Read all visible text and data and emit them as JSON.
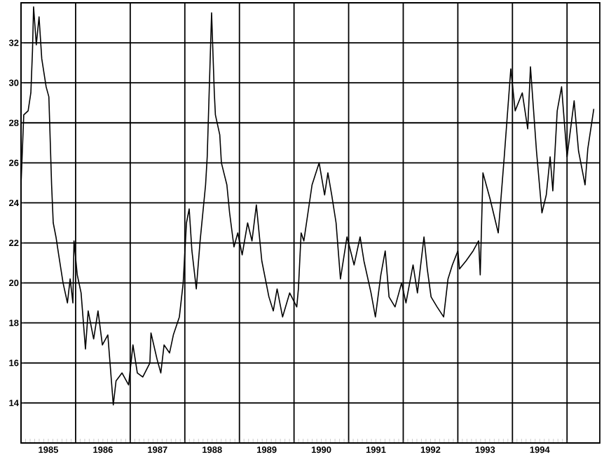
{
  "chart_data": {
    "type": "line",
    "x": [
      1985.0,
      1985.05,
      1985.13,
      1985.18,
      1985.21,
      1985.23,
      1985.28,
      1985.33,
      1985.38,
      1985.46,
      1985.51,
      1985.56,
      1985.59,
      1985.64,
      1985.69,
      1985.77,
      1985.85,
      1985.9,
      1985.95,
      1985.97,
      1986.03,
      1986.1,
      1986.18,
      1986.23,
      1986.33,
      1986.41,
      1986.49,
      1986.59,
      1986.69,
      1986.74,
      1986.85,
      1986.97,
      1987.05,
      1987.13,
      1987.23,
      1987.36,
      1987.38,
      1987.49,
      1987.56,
      1987.62,
      1987.72,
      1987.79,
      1987.9,
      1987.97,
      1988.03,
      1988.08,
      1988.13,
      1988.21,
      1988.28,
      1988.38,
      1988.41,
      1988.49,
      1988.54,
      1988.56,
      1988.64,
      1988.67,
      1988.77,
      1988.82,
      1988.9,
      1988.97,
      1989.05,
      1989.15,
      1989.23,
      1989.31,
      1989.41,
      1989.54,
      1989.62,
      1989.69,
      1989.79,
      1989.92,
      1990.05,
      1990.08,
      1990.13,
      1990.18,
      1990.33,
      1990.46,
      1990.56,
      1990.62,
      1990.69,
      1990.77,
      1990.85,
      1990.97,
      1991.1,
      1991.21,
      1991.28,
      1991.41,
      1991.49,
      1991.59,
      1991.67,
      1991.74,
      1991.85,
      1991.97,
      1992.05,
      1992.18,
      1992.26,
      1992.38,
      1992.44,
      1992.51,
      1992.62,
      1992.74,
      1992.82,
      1992.9,
      1993.0,
      1993.03,
      1993.15,
      1993.28,
      1993.38,
      1993.41,
      1993.46,
      1993.59,
      1993.74,
      1993.85,
      1993.97,
      1994.05,
      1994.18,
      1994.28,
      1994.33,
      1994.44,
      1994.54,
      1994.62,
      1994.69,
      1994.74,
      1994.82,
      1994.9,
      1995.0,
      1995.13,
      1995.21,
      1995.33,
      1995.38,
      1995.49
    ],
    "values": [
      24.9,
      28.4,
      28.6,
      29.5,
      31.6,
      33.8,
      31.9,
      33.3,
      31.2,
      29.8,
      29.3,
      24.9,
      23.0,
      22.3,
      21.4,
      20.0,
      19.0,
      20.2,
      19.0,
      22.1,
      20.4,
      19.5,
      16.7,
      18.6,
      17.2,
      18.6,
      16.9,
      17.4,
      13.9,
      15.1,
      15.5,
      14.9,
      16.9,
      15.5,
      15.3,
      16.0,
      17.5,
      16.2,
      15.5,
      16.9,
      16.5,
      17.4,
      18.3,
      20.0,
      23.0,
      23.7,
      21.6,
      19.7,
      22.1,
      24.9,
      26.3,
      33.5,
      29.5,
      28.4,
      27.4,
      26.0,
      24.9,
      23.5,
      21.8,
      22.5,
      21.4,
      23.0,
      22.1,
      23.9,
      21.1,
      19.3,
      18.6,
      19.7,
      18.3,
      19.5,
      18.8,
      19.7,
      22.5,
      22.1,
      24.9,
      26.0,
      24.4,
      25.5,
      24.4,
      23.0,
      20.2,
      22.3,
      20.9,
      22.3,
      21.1,
      19.5,
      18.3,
      20.4,
      21.6,
      19.3,
      18.8,
      20.0,
      19.0,
      20.9,
      19.5,
      22.3,
      20.7,
      19.3,
      18.8,
      18.3,
      20.2,
      20.9,
      21.6,
      20.7,
      21.1,
      21.6,
      22.1,
      20.4,
      25.5,
      24.2,
      22.5,
      26.3,
      30.7,
      28.6,
      29.5,
      27.7,
      30.8,
      26.6,
      23.5,
      24.4,
      26.3,
      24.6,
      28.6,
      29.8,
      26.3,
      29.1,
      26.6,
      24.9,
      26.7,
      28.7
    ],
    "color": "#000000",
    "xlim": [
      1985,
      1995.6
    ],
    "ylim": [
      12,
      34
    ],
    "xticks": [
      {
        "value": 1985,
        "label": null
      },
      {
        "value": 1986,
        "label": null
      },
      {
        "value": 1987,
        "label": null
      },
      {
        "value": 1988,
        "label": null
      },
      {
        "value": 1989,
        "label": null
      },
      {
        "value": 1990,
        "label": null
      },
      {
        "value": 1991,
        "label": null
      },
      {
        "value": 1992,
        "label": null
      },
      {
        "value": 1993,
        "label": null
      },
      {
        "value": 1994,
        "label": null
      },
      {
        "value": 1995,
        "label": null
      },
      {
        "value": 1985.5,
        "label": "1985"
      },
      {
        "value": 1986.5,
        "label": "1986"
      },
      {
        "value": 1987.5,
        "label": "1987"
      },
      {
        "value": 1988.5,
        "label": "1988"
      },
      {
        "value": 1989.5,
        "label": "1989"
      },
      {
        "value": 1990.5,
        "label": "1990"
      },
      {
        "value": 1991.5,
        "label": "1991"
      },
      {
        "value": 1992.5,
        "label": "1992"
      },
      {
        "value": 1993.5,
        "label": "1993"
      },
      {
        "value": 1994.5,
        "label": "1994"
      }
    ],
    "yticks": [
      14,
      16,
      18,
      20,
      22,
      24,
      26,
      28,
      30,
      32
    ],
    "grid": true
  }
}
